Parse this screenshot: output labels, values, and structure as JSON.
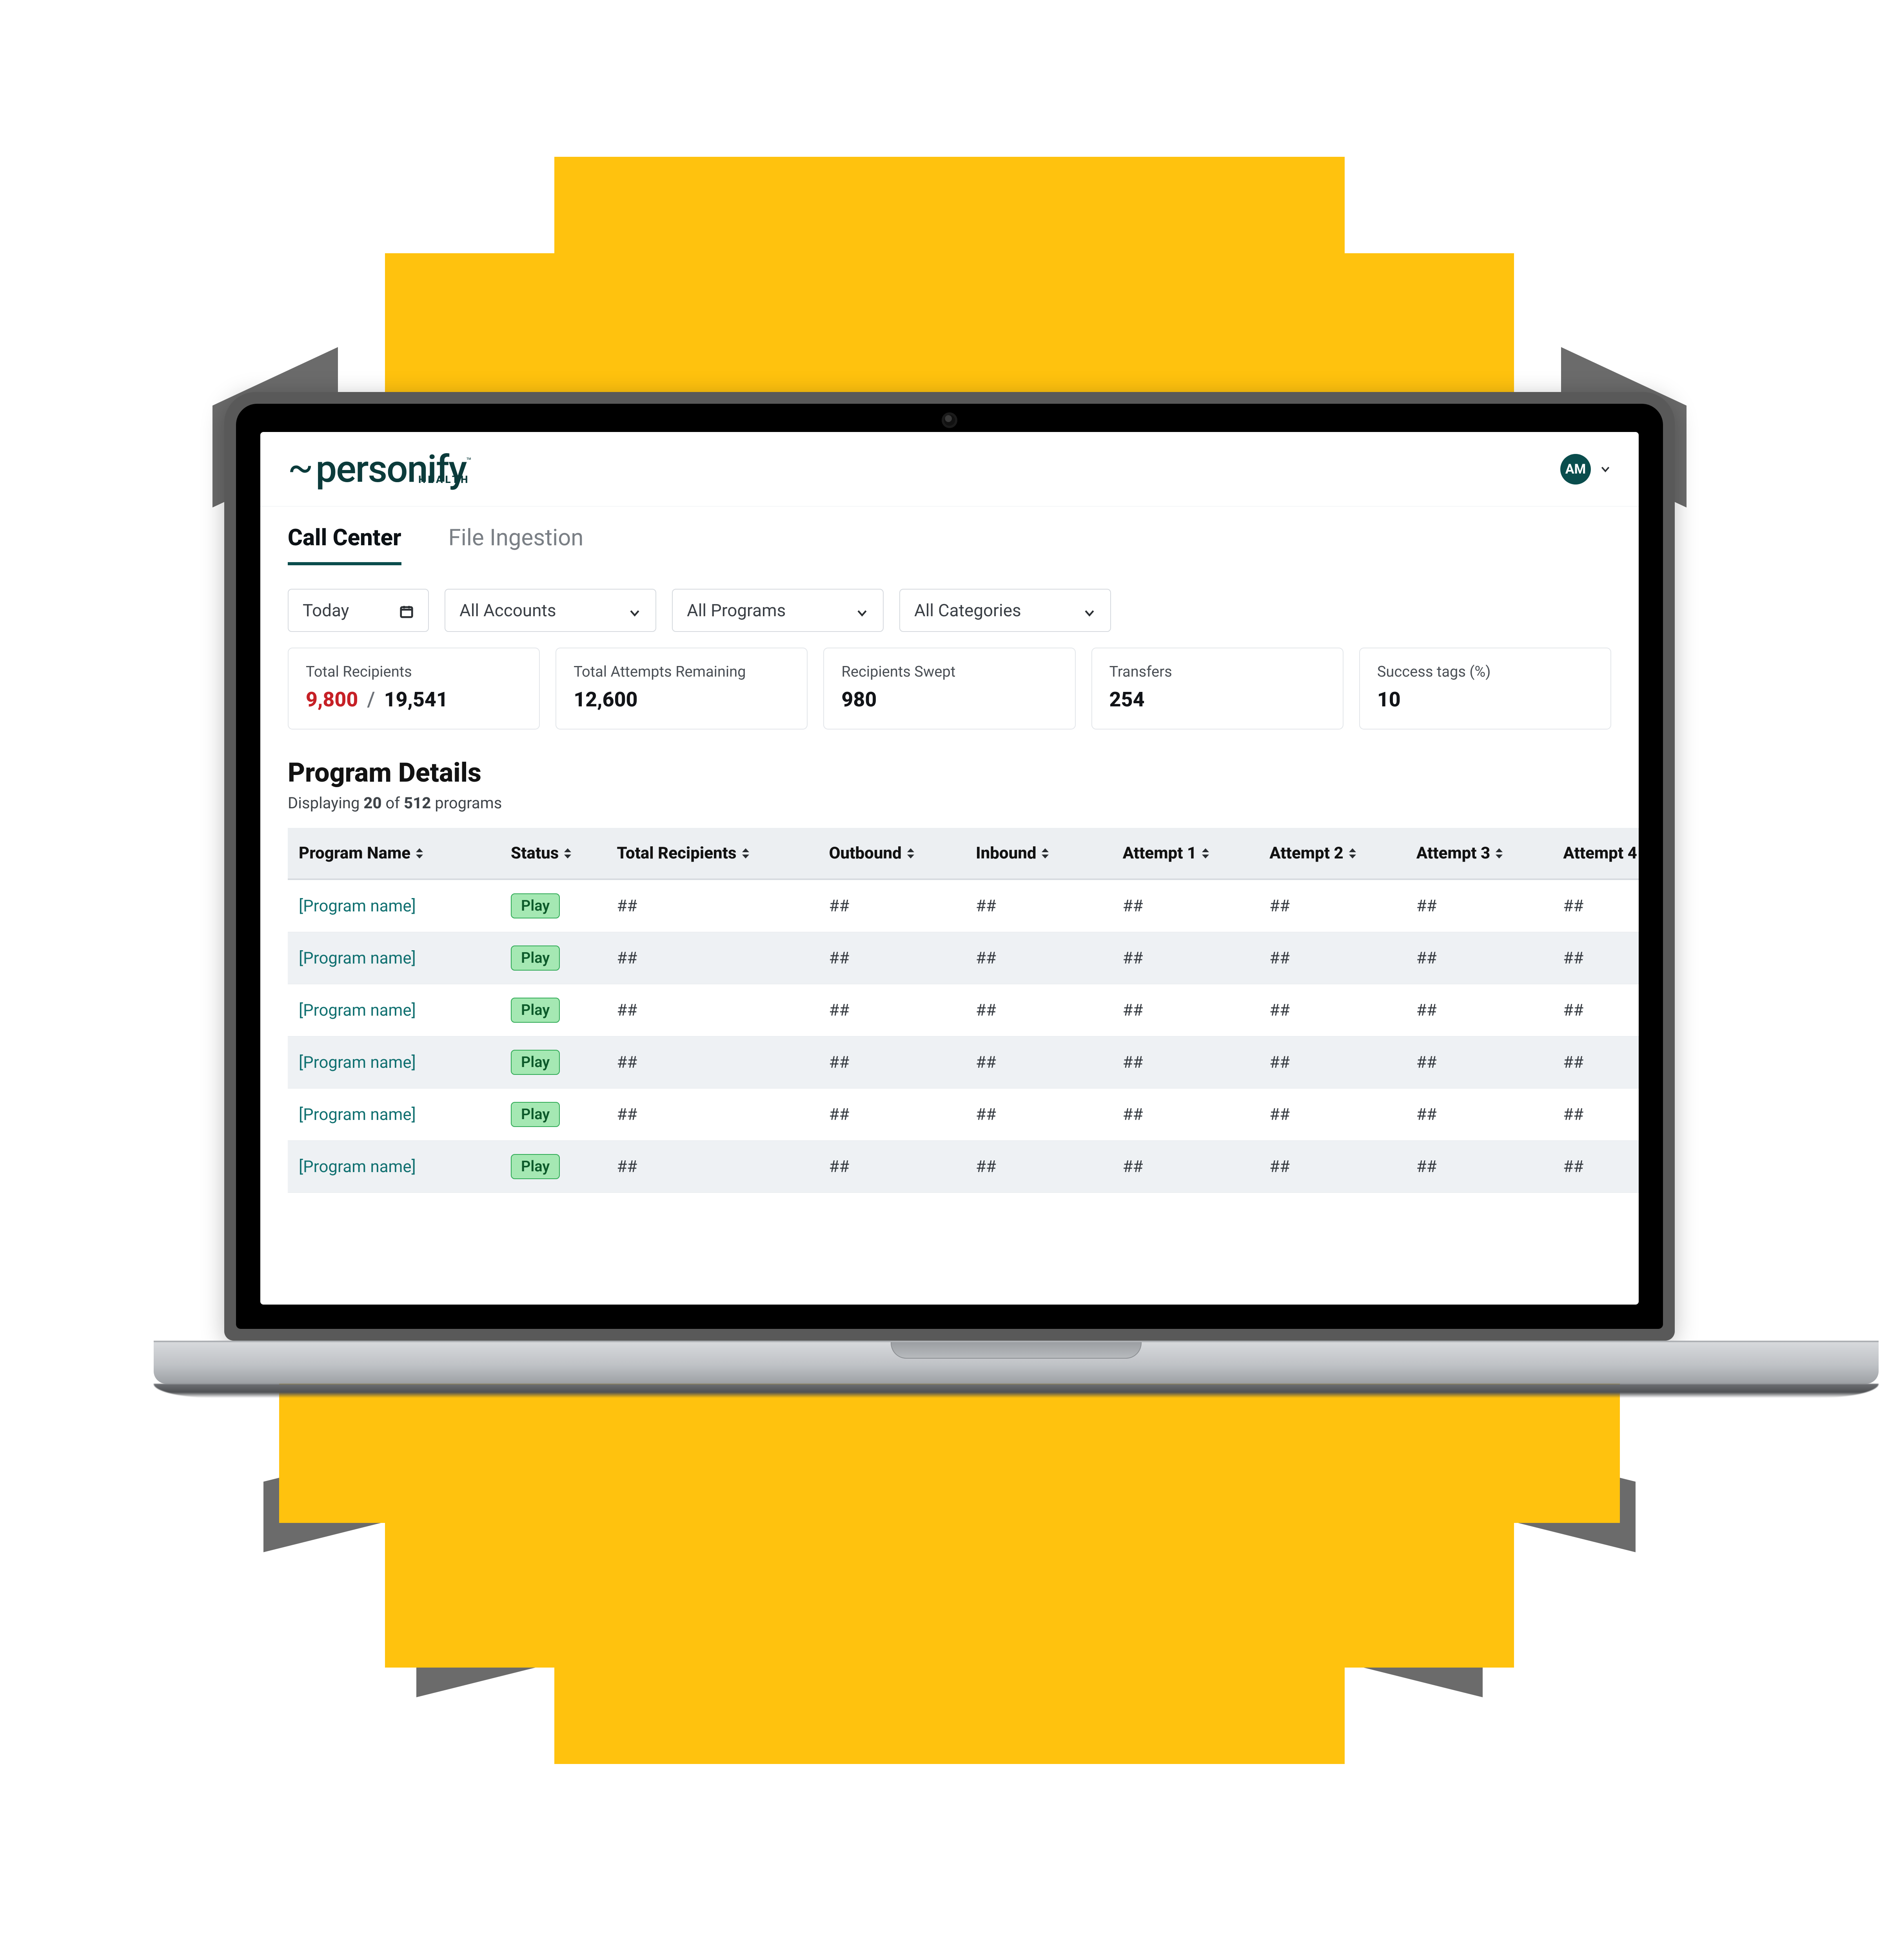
{
  "background": {
    "page_bg": "#ffffff",
    "yellow": "#ffc20e",
    "grey_shadow": "#6b6b6b"
  },
  "laptop": {
    "bezel_outer": "#595959",
    "bezel_inner": "#000000",
    "base_gradient_top": "#d7d9dc",
    "base_gradient_bottom": "#9da0a4"
  },
  "brand": {
    "tilde": "~",
    "name": "personify",
    "tm": "™",
    "sub": "HEALTH",
    "color": "#0b3b3b"
  },
  "user": {
    "initials": "AM",
    "avatar_bg": "#0a4d4d",
    "avatar_fg": "#ffffff"
  },
  "tabs": {
    "items": [
      {
        "label": "Call Center",
        "active": true
      },
      {
        "label": "File Ingestion",
        "active": false
      }
    ],
    "active_underline": "#0a4d4d",
    "inactive_color": "#7a7f85"
  },
  "filters": {
    "date": {
      "label": "Today"
    },
    "accounts": {
      "label": "All Accounts"
    },
    "programs": {
      "label": "All Programs"
    },
    "categories": {
      "label": "All Categories"
    },
    "border": "#d6dadf"
  },
  "stats": {
    "cards": [
      {
        "label": "Total Recipients",
        "value_red": "9,800",
        "sep": "/",
        "value2": "19,541"
      },
      {
        "label": "Total Attempts Remaining",
        "value": "12,600"
      },
      {
        "label": "Recipients Swept",
        "value": "980"
      },
      {
        "label": "Transfers",
        "value": "254"
      },
      {
        "label": "Success tags (%)",
        "value": "10"
      }
    ],
    "red": "#c62026",
    "border": "#e3e6ea"
  },
  "section": {
    "title": "Program Details",
    "sub_prefix": "Displaying ",
    "sub_count": "20",
    "sub_mid": " of ",
    "sub_total": "512",
    "sub_suffix": " programs"
  },
  "table": {
    "header_bg": "#eceff2",
    "row_alt_bg": "#eef1f4",
    "link_color": "#107070",
    "pill_bg": "#a5e8b3",
    "pill_border": "#2faa55",
    "pill_fg": "#0c5a2a",
    "columns": [
      "Program Name",
      "Status",
      "Total Recipients",
      "Outbound",
      "Inbound",
      "Attempt 1",
      "Attempt 2",
      "Attempt 3",
      "Attempt 4"
    ],
    "col_classes": [
      "col-name",
      "col-status",
      "col-tot",
      "col-num",
      "col-num",
      "col-num",
      "col-num",
      "col-num",
      "col-num"
    ],
    "rows": [
      {
        "name": "[Program name]",
        "status": "Play",
        "total": "##",
        "outbound": "##",
        "inbound": "##",
        "a1": "##",
        "a2": "##",
        "a3": "##",
        "a4": "##"
      },
      {
        "name": "[Program name]",
        "status": "Play",
        "total": "##",
        "outbound": "##",
        "inbound": "##",
        "a1": "##",
        "a2": "##",
        "a3": "##",
        "a4": "##"
      },
      {
        "name": "[Program name]",
        "status": "Play",
        "total": "##",
        "outbound": "##",
        "inbound": "##",
        "a1": "##",
        "a2": "##",
        "a3": "##",
        "a4": "##"
      },
      {
        "name": "[Program name]",
        "status": "Play",
        "total": "##",
        "outbound": "##",
        "inbound": "##",
        "a1": "##",
        "a2": "##",
        "a3": "##",
        "a4": "##"
      },
      {
        "name": "[Program name]",
        "status": "Play",
        "total": "##",
        "outbound": "##",
        "inbound": "##",
        "a1": "##",
        "a2": "##",
        "a3": "##",
        "a4": "##"
      },
      {
        "name": "[Program name]",
        "status": "Play",
        "total": "##",
        "outbound": "##",
        "inbound": "##",
        "a1": "##",
        "a2": "##",
        "a3": "##",
        "a4": "##"
      }
    ]
  }
}
